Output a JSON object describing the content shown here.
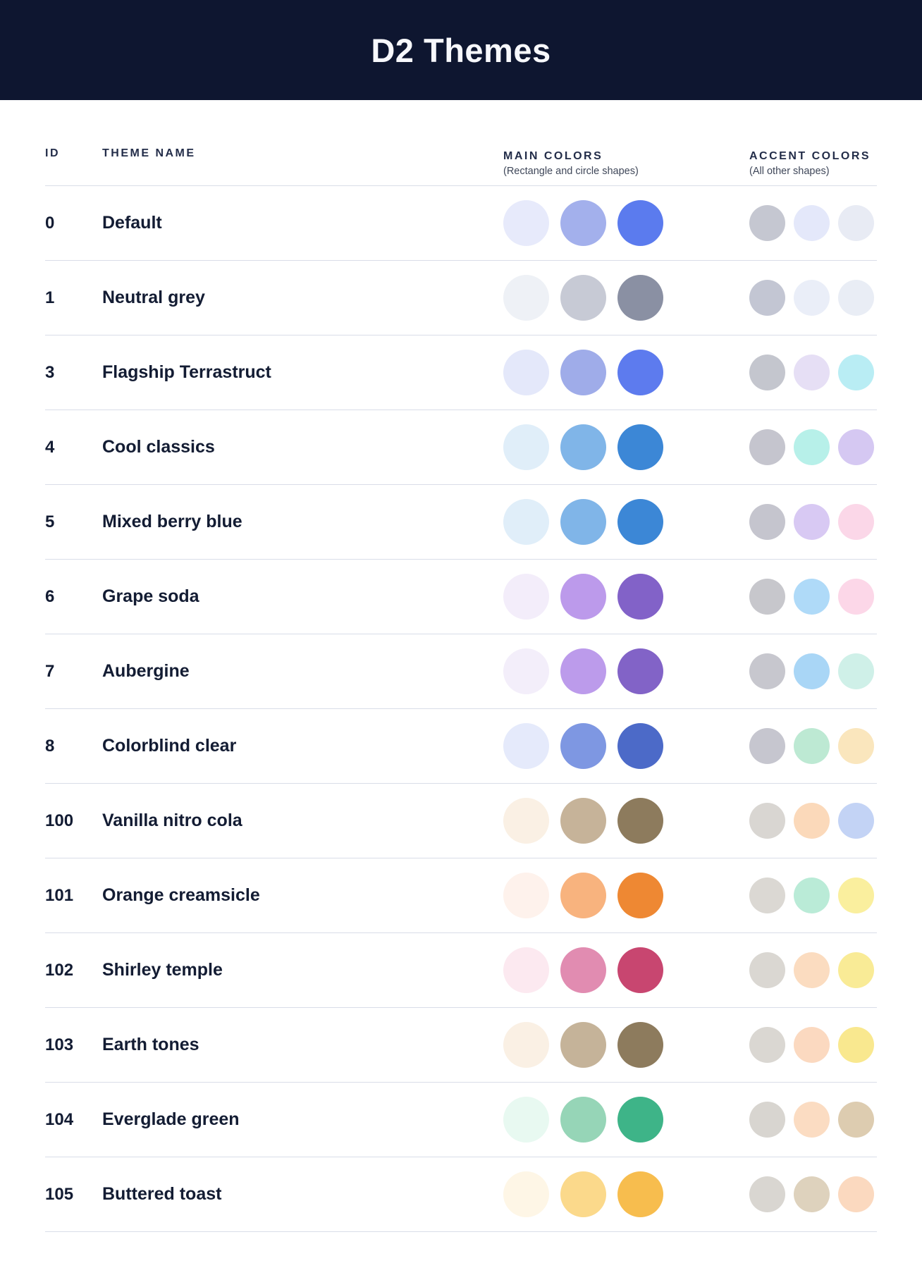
{
  "header": {
    "title": "D2 Themes"
  },
  "columns": {
    "id_label": "ID",
    "name_label": "THEME NAME",
    "main_label": "MAIN COLORS",
    "main_sub": "(Rectangle and circle shapes)",
    "accent_label": "ACCENT COLORS",
    "accent_sub": "(All other shapes)"
  },
  "colors": {
    "header_bg": "#0e1630",
    "title_color": "#f7f8fc",
    "separator": "#d9dde8",
    "text_dark": "#131c33",
    "text_head": "#232d49",
    "text_sub": "#3f4759"
  },
  "themes": [
    {
      "id": "0",
      "name": "Default",
      "main": [
        "#e7eafb",
        "#a3b0ec",
        "#5b7bee"
      ],
      "accent": [
        "#c5c7d1",
        "#e4e8fa",
        "#e8ebf4"
      ]
    },
    {
      "id": "1",
      "name": "Neutral grey",
      "main": [
        "#eef1f6",
        "#c7cad5",
        "#8a90a3"
      ],
      "accent": [
        "#c3c6d3",
        "#eaeef8",
        "#e9edf5"
      ]
    },
    {
      "id": "3",
      "name": "Flagship Terrastruct",
      "main": [
        "#e4e8fa",
        "#9face9",
        "#5d7bee"
      ],
      "accent": [
        "#c4c6ce",
        "#e6dff5",
        "#b9edf4"
      ]
    },
    {
      "id": "4",
      "name": "Cool classics",
      "main": [
        "#e0eef9",
        "#80b5e8",
        "#3c87d6"
      ],
      "accent": [
        "#c5c5ce",
        "#b7f0e9",
        "#d5c8f2"
      ]
    },
    {
      "id": "5",
      "name": "Mixed berry blue",
      "main": [
        "#e0eef9",
        "#80b5e8",
        "#3c87d6"
      ],
      "accent": [
        "#c5c5ce",
        "#d8c9f3",
        "#fbd7e8"
      ]
    },
    {
      "id": "6",
      "name": "Grape soda",
      "main": [
        "#f3edfa",
        "#bc9aeb",
        "#8262c8"
      ],
      "accent": [
        "#c7c7cc",
        "#afdaf8",
        "#fcd7e8"
      ]
    },
    {
      "id": "7",
      "name": "Aubergine",
      "main": [
        "#f3eefa",
        "#bc9beb",
        "#8263c7"
      ],
      "accent": [
        "#c7c7ce",
        "#a9d6f6",
        "#cff0e8"
      ]
    },
    {
      "id": "8",
      "name": "Colorblind clear",
      "main": [
        "#e5eafb",
        "#7e97e2",
        "#4c6ac8"
      ],
      "accent": [
        "#c6c6cf",
        "#bde9d3",
        "#fae6bd"
      ]
    },
    {
      "id": "100",
      "name": "Vanilla nitro cola",
      "main": [
        "#faf0e4",
        "#c6b399",
        "#8d7b5d"
      ],
      "accent": [
        "#d9d6d2",
        "#fbd9ba",
        "#c3d3f5"
      ]
    },
    {
      "id": "101",
      "name": "Orange creamsicle",
      "main": [
        "#fef2ec",
        "#f8b37e",
        "#ee8833"
      ],
      "accent": [
        "#dbd8d3",
        "#baebd7",
        "#faef9e"
      ]
    },
    {
      "id": "102",
      "name": "Shirley temple",
      "main": [
        "#fce9f0",
        "#e18cb1",
        "#c84670"
      ],
      "accent": [
        "#dad7d2",
        "#fbdcc0",
        "#f9eb96"
      ]
    },
    {
      "id": "103",
      "name": "Earth tones",
      "main": [
        "#faf0e4",
        "#c5b399",
        "#8d7b5d"
      ],
      "accent": [
        "#dad7d2",
        "#fbd9c0",
        "#f9e88f"
      ]
    },
    {
      "id": "104",
      "name": "Everglade green",
      "main": [
        "#e8f9f1",
        "#96d5b7",
        "#3eb488"
      ],
      "accent": [
        "#d8d5d0",
        "#fbdcc2",
        "#ddccb0"
      ]
    },
    {
      "id": "105",
      "name": "Buttered toast",
      "main": [
        "#fef6e6",
        "#fbd98b",
        "#f7bd4e"
      ],
      "accent": [
        "#d9d6d1",
        "#ded2bd",
        "#fbd9bf"
      ]
    }
  ]
}
